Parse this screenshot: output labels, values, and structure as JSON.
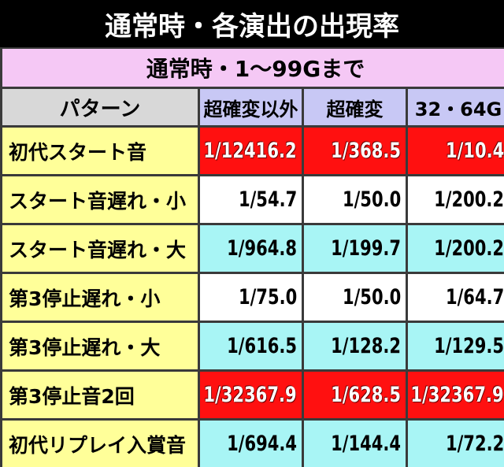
{
  "header": {
    "title": "通常時・各演出の出現率",
    "subtitle": "通常時・1～99Gまで"
  },
  "table": {
    "columns": [
      "パターン",
      "超確変以外",
      "超確変",
      "32・64G"
    ],
    "rows": [
      [
        "初代スタート音",
        "1/12416.2",
        "1/368.5",
        "1/10.4"
      ],
      [
        "スタート音遅れ・小",
        "1/54.7",
        "1/50.0",
        "1/200.2"
      ],
      [
        "スタート音遅れ・大",
        "1/964.8",
        "1/199.7",
        "1/200.2"
      ],
      [
        "第3停止遅れ・小",
        "1/75.0",
        "1/50.0",
        "1/64.7"
      ],
      [
        "第3停止遅れ・大",
        "1/616.5",
        "1/128.2",
        "1/129.5"
      ],
      [
        "第3停止音2回",
        "1/32367.9",
        "1/628.5",
        "1/32367.9"
      ],
      [
        "初代リプレイ入賞音",
        "1/694.4",
        "1/144.4",
        "1/72.2"
      ]
    ]
  }
}
